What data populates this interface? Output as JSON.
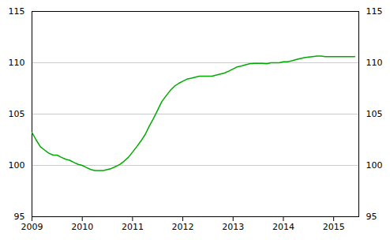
{
  "chart_data": {
    "type": "line",
    "x": [
      2009.0,
      2009.08,
      2009.17,
      2009.25,
      2009.33,
      2009.42,
      2009.5,
      2009.58,
      2009.67,
      2009.75,
      2009.83,
      2009.92,
      2010.0,
      2010.08,
      2010.17,
      2010.25,
      2010.33,
      2010.42,
      2010.5,
      2010.58,
      2010.67,
      2010.75,
      2010.83,
      2010.92,
      2011.0,
      2011.08,
      2011.17,
      2011.25,
      2011.33,
      2011.42,
      2011.5,
      2011.58,
      2011.67,
      2011.75,
      2011.83,
      2011.92,
      2012.0,
      2012.08,
      2012.17,
      2012.25,
      2012.33,
      2012.42,
      2012.5,
      2012.58,
      2012.67,
      2012.75,
      2012.83,
      2012.92,
      2013.0,
      2013.08,
      2013.17,
      2013.25,
      2013.33,
      2013.42,
      2013.5,
      2013.58,
      2013.67,
      2013.75,
      2013.83,
      2013.92,
      2014.0,
      2014.08,
      2014.17,
      2014.25,
      2014.33,
      2014.42,
      2014.5,
      2014.58,
      2014.67,
      2014.75,
      2014.83,
      2014.92,
      2015.0,
      2015.08,
      2015.17,
      2015.25,
      2015.33,
      2015.42
    ],
    "values": [
      103.2,
      102.5,
      101.8,
      101.5,
      101.2,
      101.0,
      101.0,
      100.8,
      100.6,
      100.5,
      100.3,
      100.1,
      100.0,
      99.8,
      99.6,
      99.5,
      99.5,
      99.5,
      99.6,
      99.7,
      99.9,
      100.1,
      100.4,
      100.8,
      101.3,
      101.8,
      102.4,
      103.0,
      103.8,
      104.6,
      105.4,
      106.2,
      106.8,
      107.3,
      107.7,
      108.0,
      108.2,
      108.4,
      108.5,
      108.6,
      108.7,
      108.7,
      108.7,
      108.7,
      108.8,
      108.9,
      109.0,
      109.2,
      109.4,
      109.6,
      109.7,
      109.8,
      109.9,
      109.95,
      109.95,
      109.95,
      109.9,
      110.0,
      110.0,
      110.0,
      110.1,
      110.1,
      110.2,
      110.3,
      110.4,
      110.5,
      110.55,
      110.6,
      110.65,
      110.65,
      110.6,
      110.6,
      110.6,
      110.6,
      110.6,
      110.6,
      110.6,
      110.6
    ],
    "color": "#00aa00",
    "xlim": [
      2009.0,
      2015.5
    ],
    "xticks": [
      2009,
      2010,
      2011,
      2012,
      2013,
      2014,
      2015
    ],
    "ylim": [
      95,
      115
    ],
    "yticks": [
      95,
      100,
      105,
      110,
      115
    ],
    "grid": true
  }
}
